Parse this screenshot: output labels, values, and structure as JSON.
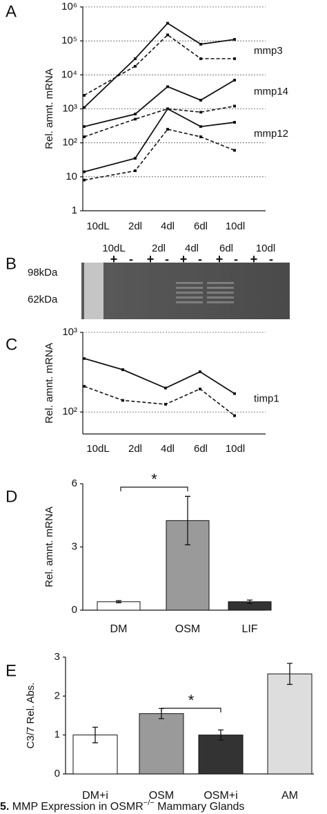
{
  "chart_data": [
    {
      "type": "line",
      "panel": "A",
      "y_label": "Rel. amnt. mRNA",
      "log_scale": true,
      "grid": true,
      "categories": [
        "10dL",
        "2dl",
        "4dl",
        "6dl",
        "10dl"
      ],
      "ylim": [
        1,
        1000000
      ],
      "yticks": [
        1,
        10,
        {
          "value": 100,
          "label": "10²"
        },
        {
          "value": 1000,
          "label": "10³"
        },
        {
          "value": 10000,
          "label": "10⁴"
        },
        {
          "value": 100000,
          "label": "10⁵"
        },
        {
          "value": 1000000,
          "label": "10⁶"
        }
      ],
      "labels": [
        "mmp3",
        "mmp14",
        "mmp12"
      ],
      "series": [
        {
          "color": "#111111",
          "dashed": false,
          "values": [
            1100,
            30000,
            330000,
            80000,
            110000
          ]
        },
        {
          "color": "#111111",
          "dashed": true,
          "values": [
            2500,
            18000,
            150000,
            30000,
            30000
          ]
        },
        {
          "color": "#111111",
          "dashed": false,
          "values": [
            300,
            700,
            4500,
            1800,
            7000
          ]
        },
        {
          "color": "#111111",
          "dashed": true,
          "values": [
            150,
            500,
            1000,
            800,
            1200
          ]
        },
        {
          "color": "#111111",
          "dashed": false,
          "values": [
            14,
            35,
            1000,
            300,
            400
          ]
        },
        {
          "color": "#111111",
          "dashed": true,
          "values": [
            8,
            15,
            250,
            150,
            60
          ]
        }
      ]
    },
    {
      "type": "gel",
      "panel": "B",
      "categories": [
        "10dL",
        "2dl",
        "4dl",
        "6dl",
        "10dl"
      ],
      "treatments": [
        "+",
        "-"
      ],
      "marker_labels": [
        "98kDa",
        "62kDa"
      ]
    },
    {
      "type": "line",
      "panel": "C",
      "y_label": "Rel. amnt. mRNA",
      "log_scale": true,
      "grid": true,
      "categories": [
        "10dL",
        "2dl",
        "4dl",
        "6dl",
        "10dl"
      ],
      "ylim": [
        53,
        1000
      ],
      "yticks": [
        {
          "value": 100,
          "label": "10²"
        },
        {
          "value": 1000,
          "label": "10³"
        }
      ],
      "labels": [
        "timp1"
      ],
      "series": [
        {
          "color": "#111111",
          "dashed": false,
          "values": [
            470,
            340,
            200,
            320,
            170
          ]
        },
        {
          "color": "#111111",
          "dashed": true,
          "values": [
            210,
            140,
            125,
            195,
            90
          ]
        }
      ]
    },
    {
      "type": "bar",
      "panel": "D",
      "y_label": "Rel. amnt. mRNA",
      "annotation": "*",
      "categories": [
        "DM",
        "OSM",
        "LIF"
      ],
      "values": [
        0.4,
        4.25,
        0.4
      ],
      "errors": [
        0.05,
        1.15,
        0.08
      ],
      "colors": [
        "#ffffff",
        "#9a9a9a",
        "#333333"
      ],
      "ylim": [
        0,
        6
      ],
      "yticks": [
        0,
        3,
        6
      ]
    },
    {
      "type": "bar",
      "panel": "E",
      "y_label": "C3/7 Rel. Abs.",
      "annotation": "*",
      "categories": [
        "DM+i",
        "OSM",
        "OSM+i",
        "AM"
      ],
      "values": [
        1.0,
        1.55,
        1.0,
        2.57
      ],
      "errors": [
        0.2,
        0.13,
        0.13,
        0.27
      ],
      "colors": [
        "#ffffff",
        "#9a9a9a",
        "#333333",
        "#dddddd"
      ],
      "ylim": [
        0,
        3
      ],
      "yticks": [
        0,
        1,
        2,
        3
      ]
    }
  ],
  "caption": [
    "5.",
    "MMP Expression in OSMR",
    "−/−",
    "Mammary Glands"
  ]
}
